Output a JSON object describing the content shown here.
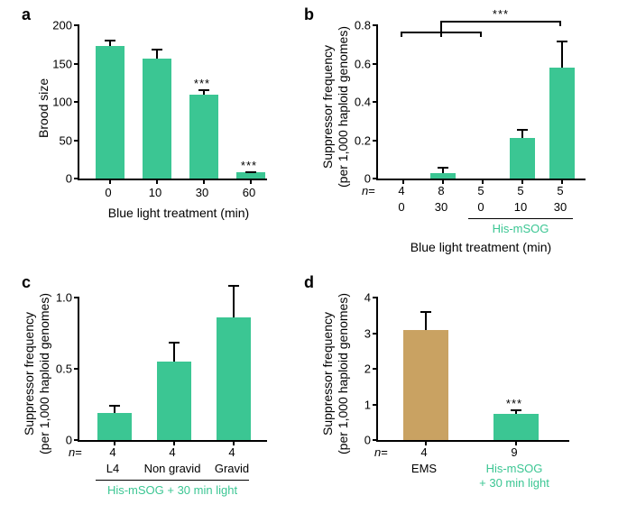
{
  "colors": {
    "green": "#3bc693",
    "tan": "#c9a262",
    "axis": "#000000",
    "bg": "#ffffff",
    "text": "#000000",
    "green_text": "#3bc693"
  },
  "panels": {
    "a": {
      "label": "a",
      "type": "bar",
      "ylabel": "Brood size",
      "xlabel": "Blue light treatment (min)",
      "ylim": [
        0,
        200
      ],
      "ytick_step": 50,
      "categories": [
        "0",
        "10",
        "30",
        "60"
      ],
      "values": [
        173,
        156,
        109,
        8
      ],
      "errors": [
        8,
        14,
        7,
        2
      ],
      "colors": [
        "#3bc693",
        "#3bc693",
        "#3bc693",
        "#3bc693"
      ],
      "sig": [
        "",
        "",
        "***",
        "***"
      ]
    },
    "b": {
      "label": "b",
      "type": "bar",
      "ylabel_lines": [
        "Suppressor frequency",
        "(per 1,000 haploid genomes)"
      ],
      "xlabel": "Blue light treatment (min)",
      "ylim": [
        0,
        0.8
      ],
      "ytick_step": 0.2,
      "categories": [
        "0",
        "30",
        "0",
        "10",
        "30"
      ],
      "n": [
        "4",
        "8",
        "5",
        "5",
        "5"
      ],
      "values": [
        0.0,
        0.03,
        0.0,
        0.21,
        0.58
      ],
      "errors": [
        0.0,
        0.03,
        0.0,
        0.05,
        0.14
      ],
      "colors": [
        "#3bc693",
        "#3bc693",
        "#3bc693",
        "#3bc693",
        "#3bc693"
      ],
      "condition_label": "His-mSOG",
      "condition_range": [
        2,
        4
      ],
      "sig_bracket": {
        "from_group": [
          0,
          1,
          2
        ],
        "to": 4,
        "label": "***"
      }
    },
    "c": {
      "label": "c",
      "type": "bar",
      "ylabel_lines": [
        "Suppressor frequency",
        "(per 1,000 haploid genomes)"
      ],
      "ylim": [
        0,
        1.0
      ],
      "ytick_step": 0.5,
      "categories": [
        "L4",
        "Non gravid",
        "Gravid"
      ],
      "n": [
        "4",
        "4",
        "4"
      ],
      "values": [
        0.19,
        0.55,
        0.86
      ],
      "errors": [
        0.06,
        0.14,
        0.23
      ],
      "colors": [
        "#3bc693",
        "#3bc693",
        "#3bc693"
      ],
      "condition_label": "His-mSOG + 30 min light"
    },
    "d": {
      "label": "d",
      "type": "bar",
      "ylabel_lines": [
        "Suppressor frequency",
        "(per 1,000 haploid genomes)"
      ],
      "ylim": [
        0,
        4
      ],
      "ytick_step": 1,
      "categories_lines": [
        [
          "EMS"
        ],
        [
          "His-mSOG",
          "+ 30 min light"
        ]
      ],
      "n": [
        "4",
        "9"
      ],
      "values": [
        3.08,
        0.73
      ],
      "errors": [
        0.53,
        0.12
      ],
      "colors": [
        "#c9a262",
        "#3bc693"
      ],
      "sig": [
        "",
        "***"
      ],
      "cat_color": [
        "#000000",
        "#3bc693"
      ]
    }
  },
  "fonts": {
    "axis_label_size": 14,
    "tick_size": 13,
    "panel_label_size": 18
  },
  "n_label": "n="
}
